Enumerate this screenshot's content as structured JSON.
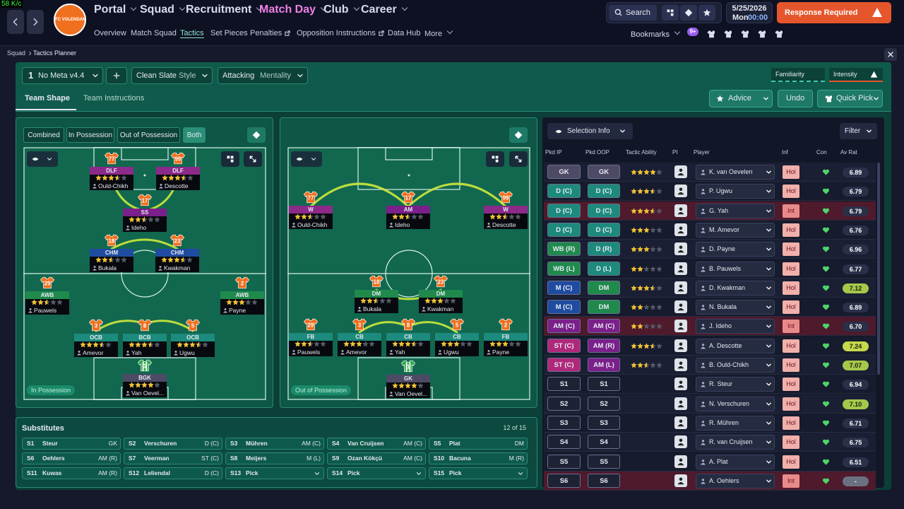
{
  "header": {
    "status": "58 K/c",
    "club": "FC VOLENDAM",
    "nav": [
      "Portal",
      "Squad",
      "Recruitment",
      "Match Day",
      "Club",
      "Career"
    ],
    "subnav": [
      "Overview",
      "Match Squad",
      "Tactics",
      "Set Pieces",
      "Penalties",
      "Opposition Instructions",
      "Data Hub",
      "More"
    ],
    "search": "Search",
    "date": "5/25/2026",
    "day": "Mon",
    "time": "00:00",
    "alert": "Response Required",
    "bookmarks": "Bookmarks",
    "badge": "9+"
  },
  "breadcrumb": [
    "Squad",
    "Tactics Planner"
  ],
  "toolbar": {
    "slot": "1",
    "tactic": "No Meta v4.4",
    "style": "Clean Slate",
    "style_label": "Style",
    "mentality": "Attacking",
    "mentality_label": "Mentality",
    "familiarity": "Familiarity",
    "intensity": "Intensity"
  },
  "tabs": [
    "Team Shape",
    "Team Instructions"
  ],
  "actions": [
    "Advice",
    "Undo",
    "Quick Pick"
  ],
  "views": [
    "Combined",
    "In Possession",
    "Out of Possession",
    "Both"
  ],
  "pitches": [
    {
      "label": "In Possession",
      "players": [
        {
          "number": "77",
          "role": "DLF",
          "name": "Ould-Chikh",
          "stars": 3.5,
          "color": "#8c2a8a"
        },
        {
          "number": "99",
          "role": "DLF",
          "name": "Descotte",
          "stars": 3.5,
          "color": "#8c2a8a"
        },
        {
          "number": "17",
          "role": "SS",
          "name": "Ideho",
          "stars": 2.5,
          "color": "#7b1f8a"
        },
        {
          "number": "18",
          "role": "CHM",
          "name": "Bukala",
          "stars": 2.5,
          "color": "#1f4ca0"
        },
        {
          "number": "23",
          "role": "CHM",
          "name": "Kwakman",
          "stars": 3.5,
          "color": "#1f4ca0"
        },
        {
          "number": "29",
          "role": "AWB",
          "name": "Pauwels",
          "stars": 2.5,
          "color": "#1f8a4c"
        },
        {
          "number": "2",
          "role": "AWB",
          "name": "Payne",
          "stars": 3,
          "color": "#1f8a4c"
        },
        {
          "number": "3",
          "role": "OCB",
          "name": "Amevor",
          "stars": 3.5,
          "color": "#1c8a7c"
        },
        {
          "number": "8",
          "role": "BCB",
          "name": "Yah",
          "stars": 3.5,
          "color": "#1c8a7c"
        },
        {
          "number": "5",
          "role": "OCB",
          "name": "Ugwu",
          "stars": 3.5,
          "color": "#1c8a7c"
        },
        {
          "number": "1",
          "role": "BGK",
          "name": "Van Oevel...",
          "stars": 4,
          "color": "#4d4a66"
        }
      ]
    },
    {
      "label": "Out of Possession",
      "players": [
        {
          "number": "77",
          "role": "W",
          "name": "Ould-Chikh",
          "stars": 2.5,
          "color": "#8c2a8a"
        },
        {
          "number": "17",
          "role": "AM",
          "name": "Ideho",
          "stars": 2.5,
          "color": "#7b1f8a"
        },
        {
          "number": "99",
          "role": "W",
          "name": "Descotte",
          "stars": 2.5,
          "color": "#8c2a8a"
        },
        {
          "number": "18",
          "role": "DM",
          "name": "Bukala",
          "stars": 2.5,
          "color": "#1f8a4c"
        },
        {
          "number": "23",
          "role": "DM",
          "name": "Kwakman",
          "stars": 3,
          "color": "#1f8a4c"
        },
        {
          "number": "29",
          "role": "FB",
          "name": "Pauwels",
          "stars": 2.5,
          "color": "#1c8a7c"
        },
        {
          "number": "3",
          "role": "CB",
          "name": "Amevor",
          "stars": 3,
          "color": "#1c8a7c"
        },
        {
          "number": "8",
          "role": "CB",
          "name": "Yah",
          "stars": 3.5,
          "color": "#1c8a7c"
        },
        {
          "number": "5",
          "role": "CB",
          "name": "Ugwu",
          "stars": 3,
          "color": "#1c8a7c"
        },
        {
          "number": "2",
          "role": "FB",
          "name": "Payne",
          "stars": 3,
          "color": "#1c8a7c"
        },
        {
          "number": "1",
          "role": "GK",
          "name": "Van Oevel...",
          "stars": 4,
          "color": "#4d4a66"
        }
      ]
    }
  ],
  "substitutes": {
    "title": "Substitutes",
    "count": "12 of 15",
    "slots": [
      {
        "slot": "S1",
        "name": "Steur",
        "position": "GK"
      },
      {
        "slot": "S2",
        "name": "Verschuren",
        "position": "D (C)"
      },
      {
        "slot": "S3",
        "name": "Mühren",
        "position": "AM (C)"
      },
      {
        "slot": "S4",
        "name": "Van Cruijsen",
        "position": "AM (C)"
      },
      {
        "slot": "S5",
        "name": "Plat",
        "position": "DM"
      },
      {
        "slot": "S6",
        "name": "Oehlers",
        "position": "AM (R)"
      },
      {
        "slot": "S7",
        "name": "Veerman",
        "position": "ST (C)"
      },
      {
        "slot": "S8",
        "name": "Meijers",
        "position": "M (L)"
      },
      {
        "slot": "S9",
        "name": "Ozan Kökçü",
        "position": "AM (C)"
      },
      {
        "slot": "S10",
        "name": "Bacuna",
        "position": "M (R)"
      },
      {
        "slot": "S11",
        "name": "Kuwas",
        "position": "AM (R)"
      },
      {
        "slot": "S12",
        "name": "Leliendal",
        "position": "D (C)"
      },
      {
        "slot": "S13",
        "name": "Pick"
      },
      {
        "slot": "S14",
        "name": "Pick"
      },
      {
        "slot": "S15",
        "name": "Pick"
      }
    ]
  },
  "selection": {
    "title": "Selection Info",
    "filter": "Filter",
    "columns": [
      "Pkd IP",
      "Pkd OOP",
      "Tactic Ability",
      "PI",
      "Player",
      "Inf",
      "Con",
      "Av Rat"
    ],
    "rows": [
      {
        "ip": "GK",
        "oop": "GK",
        "ability": 4,
        "player": "K. van Oevelen",
        "inf": "Hol",
        "rating": "6.89",
        "colors": [
          "#4d4a66",
          "#4d4a66"
        ]
      },
      {
        "ip": "D (C)",
        "oop": "D (C)",
        "ability": 3.5,
        "player": "P. Ugwu",
        "inf": "Hol",
        "rating": "6.79",
        "colors": [
          "#1c8a7c",
          "#1c8a7c"
        ]
      },
      {
        "ip": "D (C)",
        "oop": "D (C)",
        "ability": 3.5,
        "player": "G. Yah",
        "inf": "Int",
        "rating": "6.79",
        "colors": [
          "#1c8a7c",
          "#1c8a7c"
        ]
      },
      {
        "ip": "D (C)",
        "oop": "D (C)",
        "ability": 3,
        "player": "M. Amevor",
        "inf": "Hol",
        "rating": "6.76",
        "colors": [
          "#1c8a7c",
          "#1c8a7c"
        ]
      },
      {
        "ip": "WB (R)",
        "oop": "D (R)",
        "ability": 3,
        "player": "D. Payne",
        "inf": "Hol",
        "rating": "6.96",
        "colors": [
          "#1f8a4c",
          "#1c8a7c"
        ]
      },
      {
        "ip": "WB (L)",
        "oop": "D (L)",
        "ability": 2,
        "player": "B. Pauwels",
        "inf": "Hol",
        "rating": "6.77",
        "colors": [
          "#1f8a4c",
          "#1c8a7c"
        ]
      },
      {
        "ip": "M (C)",
        "oop": "DM",
        "ability": 3.5,
        "player": "D. Kwakman",
        "inf": "Hol",
        "rating": "7.12",
        "colors": [
          "#1f4ca0",
          "#1f8a4c"
        ]
      },
      {
        "ip": "M (C)",
        "oop": "DM",
        "ability": 2,
        "player": "N. Bukala",
        "inf": "Hol",
        "rating": "6.89",
        "colors": [
          "#1f4ca0",
          "#1f8a4c"
        ]
      },
      {
        "ip": "AM (C)",
        "oop": "AM (C)",
        "ability": 2,
        "player": "J. Ideho",
        "inf": "Int",
        "rating": "6.70",
        "colors": [
          "#7b1f8a",
          "#7b1f8a"
        ]
      },
      {
        "ip": "ST (C)",
        "oop": "AM (R)",
        "ability": 3.5,
        "player": "A. Descotte",
        "inf": "Hol",
        "rating": "7.24",
        "colors": [
          "#b0287a",
          "#7b1f8a"
        ]
      },
      {
        "ip": "ST (C)",
        "oop": "AM (L)",
        "ability": 2.5,
        "player": "B. Ould-Chikh",
        "inf": "Hol",
        "rating": "7.07",
        "colors": [
          "#b0287a",
          "#7b1f8a"
        ]
      },
      {
        "ip": "S1",
        "oop": "S1",
        "player": "R. Steur",
        "inf": "Hol",
        "rating": "6.94",
        "colors": [
          "#1d2234",
          "#1d2234"
        ]
      },
      {
        "ip": "S2",
        "oop": "S2",
        "player": "N. Verschuren",
        "inf": "Hol",
        "rating": "7.10",
        "colors": [
          "#1d2234",
          "#1d2234"
        ]
      },
      {
        "ip": "S3",
        "oop": "S3",
        "player": "R. Mühren",
        "inf": "Hol",
        "rating": "6.71",
        "colors": [
          "#1d2234",
          "#1d2234"
        ]
      },
      {
        "ip": "S4",
        "oop": "S4",
        "player": "R. van Cruijsen",
        "inf": "Hol",
        "rating": "6.75",
        "colors": [
          "#1d2234",
          "#1d2234"
        ]
      },
      {
        "ip": "S5",
        "oop": "S5",
        "player": "A. Plat",
        "inf": "Hol",
        "rating": "6.51",
        "colors": [
          "#1d2234",
          "#1d2234"
        ]
      },
      {
        "ip": "S6",
        "oop": "S6",
        "player": "A. Oehlers",
        "inf": "Int",
        "rating": "-",
        "colors": [
          "#1d2234",
          "#1d2234"
        ]
      }
    ]
  }
}
